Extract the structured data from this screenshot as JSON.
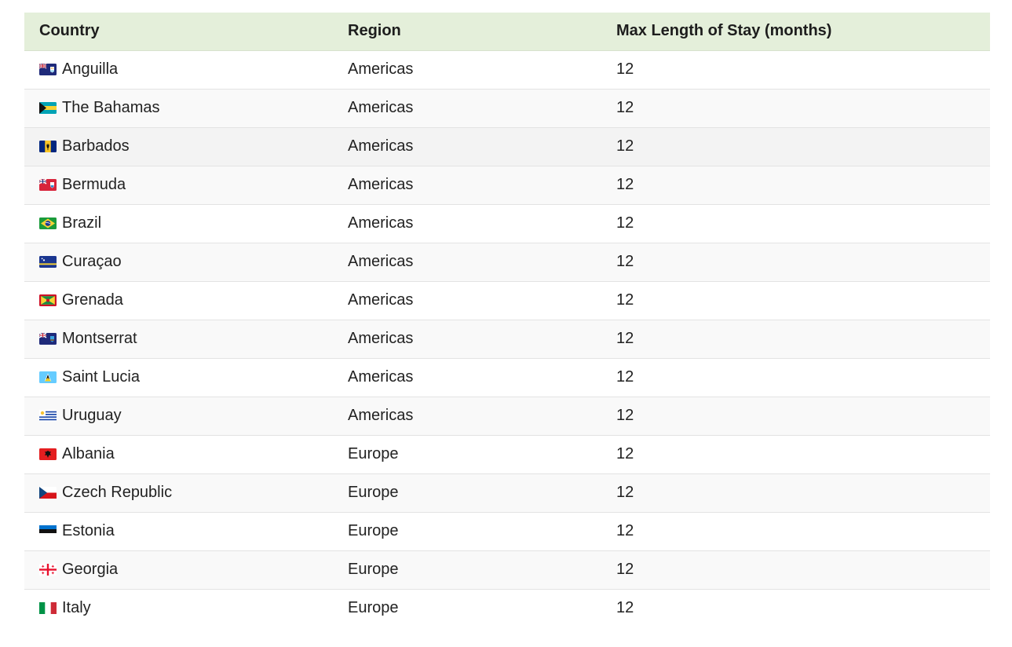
{
  "table": {
    "headers": {
      "country": "Country",
      "region": "Region",
      "stay": "Max Length of Stay (months)"
    },
    "rows": [
      {
        "country": "Anguilla",
        "region": "Americas",
        "stay": "12",
        "flag": "anguilla-flag-icon"
      },
      {
        "country": "The Bahamas",
        "region": "Americas",
        "stay": "12",
        "flag": "bahamas-flag-icon"
      },
      {
        "country": "Barbados",
        "region": "Americas",
        "stay": "12",
        "flag": "barbados-flag-icon"
      },
      {
        "country": "Bermuda",
        "region": "Americas",
        "stay": "12",
        "flag": "bermuda-flag-icon"
      },
      {
        "country": "Brazil",
        "region": "Americas",
        "stay": "12",
        "flag": "brazil-flag-icon"
      },
      {
        "country": "Curaçao",
        "region": "Americas",
        "stay": "12",
        "flag": "curacao-flag-icon"
      },
      {
        "country": "Grenada",
        "region": "Americas",
        "stay": "12",
        "flag": "grenada-flag-icon"
      },
      {
        "country": "Montserrat",
        "region": "Americas",
        "stay": "12",
        "flag": "montserrat-flag-icon"
      },
      {
        "country": "Saint Lucia",
        "region": "Americas",
        "stay": "12",
        "flag": "saint-lucia-flag-icon"
      },
      {
        "country": "Uruguay",
        "region": "Americas",
        "stay": "12",
        "flag": "uruguay-flag-icon"
      },
      {
        "country": "Albania",
        "region": "Europe",
        "stay": "12",
        "flag": "albania-flag-icon"
      },
      {
        "country": "Czech Republic",
        "region": "Europe",
        "stay": "12",
        "flag": "czech-republic-flag-icon"
      },
      {
        "country": "Estonia",
        "region": "Europe",
        "stay": "12",
        "flag": "estonia-flag-icon"
      },
      {
        "country": "Georgia",
        "region": "Europe",
        "stay": "12",
        "flag": "georgia-flag-icon"
      },
      {
        "country": "Italy",
        "region": "Europe",
        "stay": "12",
        "flag": "italy-flag-icon"
      }
    ]
  },
  "colors": {
    "header_bg": "#e4efda",
    "row_alt_bg": "#f9f9f9",
    "row_hover_bg": "#f3f3f3",
    "border": "#e3e3e3"
  }
}
